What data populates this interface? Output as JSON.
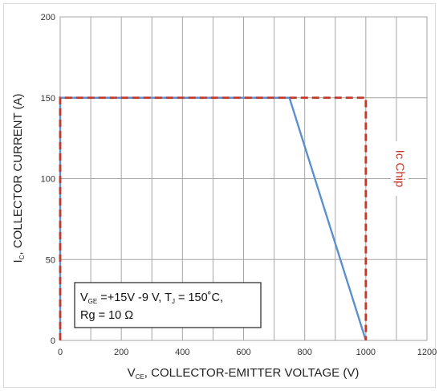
{
  "chart_data": {
    "type": "line",
    "xlabel": {
      "main": "V",
      "sub": "CE",
      "rest": ", COLLECTOR-EMITTER VOLTAGE (V)"
    },
    "ylabel": {
      "main": "I",
      "sub": "C",
      "rest": ", COLLECTOR CURRENT (A)"
    },
    "xlim": [
      0,
      1200
    ],
    "ylim": [
      0,
      200
    ],
    "x_ticks": [
      0,
      200,
      400,
      600,
      800,
      1000,
      1200
    ],
    "y_ticks": [
      0,
      50,
      100,
      150,
      200
    ],
    "x_grid_step": 100,
    "y_grid_step": 50,
    "grid": true,
    "series": [
      {
        "color": "#5b8fcf",
        "dashed": false,
        "points": [
          [
            0,
            0
          ],
          [
            0,
            150
          ],
          [
            750,
            150
          ],
          [
            1000,
            0
          ]
        ]
      },
      {
        "name": "Ic Chip",
        "color": "#c0392b",
        "dashed": true,
        "points": [
          [
            0,
            0
          ],
          [
            0,
            150
          ],
          [
            1000,
            150
          ],
          [
            1000,
            0
          ]
        ]
      }
    ],
    "annotation": "Ic Chip",
    "conditions": {
      "line1_a": "V",
      "line1_a_sub": "GE",
      "line1_b": " =+15V -9 V, T",
      "line1_b_sub": "J",
      "line1_c": " = 150˚C,",
      "line2": "Rg = 10 Ω"
    }
  }
}
